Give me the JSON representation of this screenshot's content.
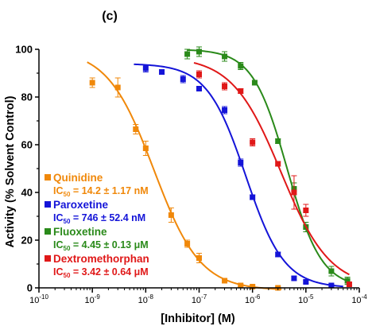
{
  "panel_label": "(c)",
  "chart_data": {
    "type": "scatter",
    "title": "",
    "xlabel": "[Inhibitor] (M)",
    "ylabel": "Activity (% Solvent Control)",
    "xscale": "log",
    "xlim": [
      1e-10,
      0.0001
    ],
    "ylim": [
      0,
      100
    ],
    "x_ticks": [
      {
        "value": 1e-10,
        "base": "10",
        "exp": "-10"
      },
      {
        "value": 1e-09,
        "base": "10",
        "exp": "-9"
      },
      {
        "value": 1e-08,
        "base": "10",
        "exp": "-8"
      },
      {
        "value": 1e-07,
        "base": "10",
        "exp": "-7"
      },
      {
        "value": 1e-06,
        "base": "10",
        "exp": "-6"
      },
      {
        "value": 1e-05,
        "base": "10",
        "exp": "-5"
      },
      {
        "value": 0.0001,
        "base": "10",
        "exp": "-4"
      }
    ],
    "y_ticks": [
      0,
      20,
      40,
      60,
      80,
      100
    ],
    "grid": false,
    "legend_position": "bottom-left",
    "series": [
      {
        "name": "Quinidine",
        "ic50_label": "IC",
        "ic50_sub": "50",
        "ic50_text": " = 14.2 ± 1.17 nM",
        "color": "#f0880a",
        "curve": {
          "bottom": -1,
          "top": 100,
          "ic50": 1.42e-08,
          "hill": 1.0,
          "xmin": 8e-10,
          "xmax": 3.5e-06
        },
        "points": [
          {
            "x": 1e-09,
            "y": 86,
            "err": 2
          },
          {
            "x": 3e-09,
            "y": 84,
            "err": 4
          },
          {
            "x": 6.5e-09,
            "y": 66.5,
            "err": 2
          },
          {
            "x": 1e-08,
            "y": 58.5,
            "err": 3
          },
          {
            "x": 3e-08,
            "y": 30.5,
            "err": 3
          },
          {
            "x": 6e-08,
            "y": 18.5,
            "err": 1.5
          },
          {
            "x": 1e-07,
            "y": 12.5,
            "err": 2
          },
          {
            "x": 3e-07,
            "y": 3,
            "err": 1
          },
          {
            "x": 6e-07,
            "y": 1,
            "err": 0.5
          },
          {
            "x": 1e-06,
            "y": 0.5,
            "err": 0.5
          },
          {
            "x": 3e-06,
            "y": 0,
            "err": 0.3
          }
        ]
      },
      {
        "name": "Paroxetine",
        "ic50_label": "IC",
        "ic50_sub": "50",
        "ic50_text": " = 746 ± 52.4 nM",
        "color": "#1414d8",
        "curve": {
          "bottom": 0,
          "top": 94,
          "ic50": 7.46e-07,
          "hill": 1.2,
          "xmin": 6e-09,
          "xmax": 5e-05
        },
        "points": [
          {
            "x": 1e-08,
            "y": 92,
            "err": 1.5
          },
          {
            "x": 2e-08,
            "y": 90.5,
            "err": 1
          },
          {
            "x": 5e-08,
            "y": 87.5,
            "err": 1.5
          },
          {
            "x": 1e-07,
            "y": 83.5,
            "err": 1
          },
          {
            "x": 3e-07,
            "y": 74.5,
            "err": 1.5
          },
          {
            "x": 6e-07,
            "y": 52.5,
            "err": 1.5
          },
          {
            "x": 1e-06,
            "y": 38,
            "err": 1
          },
          {
            "x": 3e-06,
            "y": 14,
            "err": 1
          },
          {
            "x": 6e-06,
            "y": 4,
            "err": 0.8
          },
          {
            "x": 1e-05,
            "y": 2.5,
            "err": 0.5
          },
          {
            "x": 3e-05,
            "y": 1,
            "err": 0.5
          }
        ]
      },
      {
        "name": "Fluoxetine",
        "ic50_label": "IC",
        "ic50_sub": "50",
        "ic50_text": " = 4.45 ± 0.13 μM",
        "color": "#2a8a1a",
        "curve": {
          "bottom": 0,
          "top": 100,
          "ic50": 4.45e-06,
          "hill": 1.35,
          "xmin": 6e-08,
          "xmax": 6.5e-05
        },
        "points": [
          {
            "x": 6e-08,
            "y": 98,
            "err": 2
          },
          {
            "x": 1e-07,
            "y": 99,
            "err": 2
          },
          {
            "x": 3e-07,
            "y": 97,
            "err": 2
          },
          {
            "x": 6e-07,
            "y": 93,
            "err": 1.5
          },
          {
            "x": 1.1e-06,
            "y": 86,
            "err": 1
          },
          {
            "x": 3e-06,
            "y": 61.5,
            "err": 1
          },
          {
            "x": 6e-06,
            "y": 41.5,
            "err": 2.5
          },
          {
            "x": 1e-05,
            "y": 25.5,
            "err": 2
          },
          {
            "x": 3e-05,
            "y": 7,
            "err": 2
          },
          {
            "x": 6e-05,
            "y": 3,
            "err": 1.5
          }
        ]
      },
      {
        "name": "Dextromethorphan",
        "ic50_label": "IC",
        "ic50_sub": "50",
        "ic50_text": " = 3.42 ± 0.64 μM",
        "color": "#e01818",
        "curve": {
          "bottom": 0,
          "top": 97,
          "ic50": 3.42e-06,
          "hill": 0.95,
          "xmin": 8e-08,
          "xmax": 6.5e-05
        },
        "points": [
          {
            "x": 1e-07,
            "y": 89.5,
            "err": 1.5
          },
          {
            "x": 3e-07,
            "y": 84.5,
            "err": 1.5
          },
          {
            "x": 6e-07,
            "y": 82.5,
            "err": 1
          },
          {
            "x": 1e-06,
            "y": 61,
            "err": 1.5
          },
          {
            "x": 3e-06,
            "y": 52,
            "err": 1
          },
          {
            "x": 6e-06,
            "y": 40,
            "err": 7
          },
          {
            "x": 1e-05,
            "y": 32.5,
            "err": 2.5
          },
          {
            "x": 6.5e-05,
            "y": 1.5,
            "err": 0.5
          }
        ]
      }
    ]
  }
}
